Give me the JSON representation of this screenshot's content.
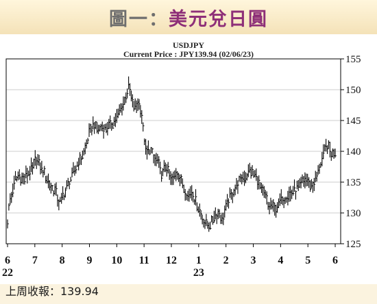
{
  "header": {
    "prefix": "圖一：",
    "title": "美元兌日圓"
  },
  "footer": {
    "text": "上周收報：139.94"
  },
  "colors": {
    "title_prefix": "#6e6e6e",
    "title": "#8e2f78",
    "bars": "#000000",
    "background": "#fbf3df"
  },
  "chart_data": {
    "type": "ohlc",
    "title": "USDJPY",
    "subtitle": "Current Price : JPY139.94 (02/06/23)",
    "ylim": [
      125,
      155
    ],
    "yticks": [
      125,
      130,
      135,
      140,
      145,
      150,
      155
    ],
    "y_axis_position": "right",
    "grid": true,
    "x_ticks": [
      {
        "label": "6",
        "sublabel": "22",
        "x": 0
      },
      {
        "label": "7",
        "sublabel": "",
        "x": 1
      },
      {
        "label": "8",
        "sublabel": "",
        "x": 2
      },
      {
        "label": "9",
        "sublabel": "",
        "x": 3
      },
      {
        "label": "10",
        "sublabel": "",
        "x": 4
      },
      {
        "label": "11",
        "sublabel": "",
        "x": 5
      },
      {
        "label": "12",
        "sublabel": "",
        "x": 6
      },
      {
        "label": "1",
        "sublabel": "23",
        "x": 7
      },
      {
        "label": "2",
        "sublabel": "",
        "x": 8
      },
      {
        "label": "3",
        "sublabel": "",
        "x": 9
      },
      {
        "label": "4",
        "sublabel": "",
        "x": 10
      },
      {
        "label": "5",
        "sublabel": "",
        "x": 11
      },
      {
        "label": "6",
        "sublabel": "",
        "x": 12
      }
    ],
    "x_range": [
      -0.05,
      12.2
    ],
    "closes": [
      {
        "x": 0.0,
        "y": 129.0
      },
      {
        "x": 0.08,
        "y": 131.5
      },
      {
        "x": 0.17,
        "y": 133.5
      },
      {
        "x": 0.3,
        "y": 135.5
      },
      {
        "x": 0.45,
        "y": 135.8
      },
      {
        "x": 0.6,
        "y": 135.3
      },
      {
        "x": 0.75,
        "y": 136.5
      },
      {
        "x": 0.92,
        "y": 137.3
      },
      {
        "x": 1.05,
        "y": 138.8
      },
      {
        "x": 1.2,
        "y": 137.5
      },
      {
        "x": 1.35,
        "y": 136.5
      },
      {
        "x": 1.5,
        "y": 135.0
      },
      {
        "x": 1.65,
        "y": 134.0
      },
      {
        "x": 1.78,
        "y": 133.5
      },
      {
        "x": 1.9,
        "y": 131.5
      },
      {
        "x": 2.02,
        "y": 132.8
      },
      {
        "x": 2.15,
        "y": 133.8
      },
      {
        "x": 2.28,
        "y": 135.2
      },
      {
        "x": 2.42,
        "y": 136.5
      },
      {
        "x": 2.55,
        "y": 137.8
      },
      {
        "x": 2.7,
        "y": 139.0
      },
      {
        "x": 2.85,
        "y": 140.5
      },
      {
        "x": 3.0,
        "y": 143.0
      },
      {
        "x": 3.15,
        "y": 144.3
      },
      {
        "x": 3.3,
        "y": 143.2
      },
      {
        "x": 3.45,
        "y": 144.2
      },
      {
        "x": 3.6,
        "y": 143.5
      },
      {
        "x": 3.72,
        "y": 144.2
      },
      {
        "x": 3.85,
        "y": 144.6
      },
      {
        "x": 4.0,
        "y": 145.6
      },
      {
        "x": 4.12,
        "y": 146.5
      },
      {
        "x": 4.25,
        "y": 148.0
      },
      {
        "x": 4.35,
        "y": 149.0
      },
      {
        "x": 4.45,
        "y": 150.5
      },
      {
        "x": 4.55,
        "y": 148.0
      },
      {
        "x": 4.65,
        "y": 147.0
      },
      {
        "x": 4.78,
        "y": 148.0
      },
      {
        "x": 4.9,
        "y": 146.5
      },
      {
        "x": 4.98,
        "y": 143.0
      },
      {
        "x": 5.08,
        "y": 139.5
      },
      {
        "x": 5.2,
        "y": 140.5
      },
      {
        "x": 5.35,
        "y": 139.0
      },
      {
        "x": 5.5,
        "y": 138.5
      },
      {
        "x": 5.65,
        "y": 136.0
      },
      {
        "x": 5.8,
        "y": 137.5
      },
      {
        "x": 5.95,
        "y": 135.5
      },
      {
        "x": 6.08,
        "y": 135.5
      },
      {
        "x": 6.2,
        "y": 136.8
      },
      {
        "x": 6.35,
        "y": 135.3
      },
      {
        "x": 6.5,
        "y": 133.5
      },
      {
        "x": 6.62,
        "y": 132.8
      },
      {
        "x": 6.75,
        "y": 133.5
      },
      {
        "x": 6.88,
        "y": 132.0
      },
      {
        "x": 7.0,
        "y": 130.8
      },
      {
        "x": 7.12,
        "y": 129.5
      },
      {
        "x": 7.25,
        "y": 128.5
      },
      {
        "x": 7.38,
        "y": 128.0
      },
      {
        "x": 7.5,
        "y": 128.8
      },
      {
        "x": 7.62,
        "y": 130.0
      },
      {
        "x": 7.75,
        "y": 129.8
      },
      {
        "x": 7.88,
        "y": 129.0
      },
      {
        "x": 8.0,
        "y": 131.0
      },
      {
        "x": 8.12,
        "y": 132.5
      },
      {
        "x": 8.25,
        "y": 133.5
      },
      {
        "x": 8.4,
        "y": 134.5
      },
      {
        "x": 8.55,
        "y": 135.5
      },
      {
        "x": 8.7,
        "y": 136.0
      },
      {
        "x": 8.85,
        "y": 136.8
      },
      {
        "x": 9.0,
        "y": 136.3
      },
      {
        "x": 9.1,
        "y": 136.0
      },
      {
        "x": 9.2,
        "y": 134.8
      },
      {
        "x": 9.32,
        "y": 133.5
      },
      {
        "x": 9.45,
        "y": 132.8
      },
      {
        "x": 9.55,
        "y": 131.0
      },
      {
        "x": 9.68,
        "y": 131.0
      },
      {
        "x": 9.8,
        "y": 130.5
      },
      {
        "x": 9.95,
        "y": 131.5
      },
      {
        "x": 10.1,
        "y": 132.5
      },
      {
        "x": 10.22,
        "y": 132.8
      },
      {
        "x": 10.35,
        "y": 133.0
      },
      {
        "x": 10.5,
        "y": 133.5
      },
      {
        "x": 10.62,
        "y": 134.0
      },
      {
        "x": 10.75,
        "y": 134.8
      },
      {
        "x": 10.88,
        "y": 135.5
      },
      {
        "x": 11.0,
        "y": 135.0
      },
      {
        "x": 11.12,
        "y": 134.5
      },
      {
        "x": 11.25,
        "y": 135.0
      },
      {
        "x": 11.38,
        "y": 137.0
      },
      {
        "x": 11.5,
        "y": 138.5
      },
      {
        "x": 11.62,
        "y": 140.0
      },
      {
        "x": 11.72,
        "y": 141.0
      },
      {
        "x": 11.82,
        "y": 140.0
      },
      {
        "x": 11.92,
        "y": 139.6
      },
      {
        "x": 12.0,
        "y": 139.94
      }
    ]
  }
}
